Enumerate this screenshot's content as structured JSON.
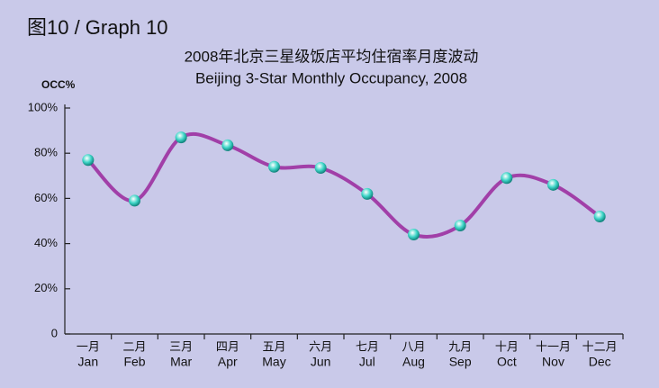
{
  "chart_data": {
    "type": "line",
    "title": "图10 / Graph 10",
    "subtitle": "2008年北京三星级饭店平均住宿率月度波动",
    "subtitle_en": "Beijing 3-Star Monthly Occupancy, 2008",
    "y_label": "OCC%",
    "categories": [
      "Jan",
      "Feb",
      "Mar",
      "Apr",
      "May",
      "Jun",
      "Jul",
      "Aug",
      "Sep",
      "Oct",
      "Nov",
      "Dec"
    ],
    "categories_zh": [
      "一月",
      "二月",
      "三月",
      "四月",
      "五月",
      "六月",
      "七月",
      "八月",
      "九月",
      "十月",
      "十一月",
      "十二月"
    ],
    "values": [
      77,
      59,
      87,
      83.5,
      74,
      73.5,
      62,
      44,
      48,
      69,
      66,
      52
    ],
    "color": "#a13fa8",
    "marker_color": "#3fd6c8",
    "ylim": [
      0,
      100
    ],
    "yticks": [
      0,
      {
        "value": 20,
        "label": "20%"
      },
      {
        "value": 40,
        "label": "40%"
      },
      {
        "value": 60,
        "label": "60%"
      },
      {
        "value": 80,
        "label": "80%"
      },
      {
        "value": 100,
        "label": "100%"
      }
    ],
    "grid": false
  }
}
